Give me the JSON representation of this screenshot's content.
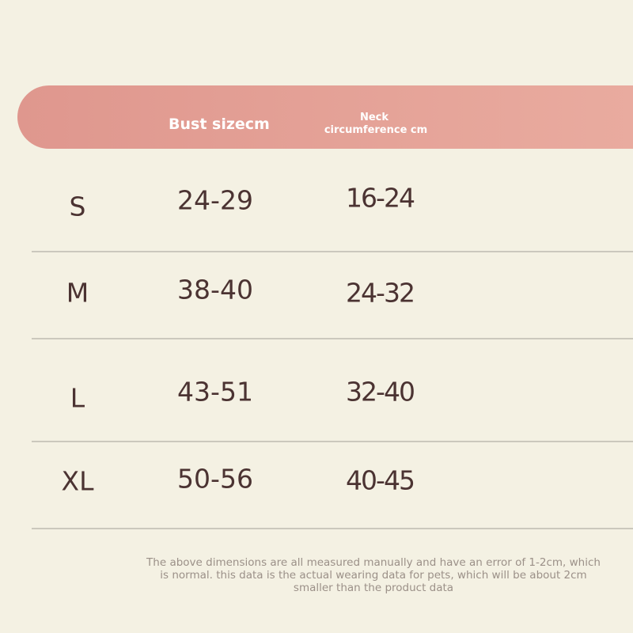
{
  "table": {
    "header": {
      "bust": "Bust sizecm",
      "neck": [
        "Neck",
        "circumference cm"
      ]
    },
    "rows": [
      [
        "S",
        "24-29",
        "16-24"
      ],
      [
        "M",
        "38-40",
        "24-32"
      ],
      [
        "L",
        "43-51",
        "32-40"
      ],
      [
        "XL",
        "50-56",
        "40-45"
      ]
    ]
  },
  "note": [
    "The above dimensions are all measured manually and have an error of 1-2cm, which",
    "is normal. this data is the actual wearing data for pets, which will be about 2cm",
    "smaller than the product data"
  ]
}
